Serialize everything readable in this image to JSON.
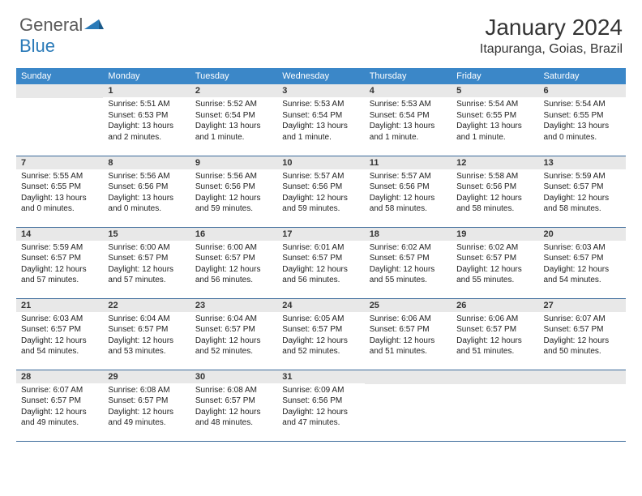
{
  "logo": {
    "text1": "General",
    "text2": "Blue"
  },
  "title": "January 2024",
  "location": "Itapuranga, Goias, Brazil",
  "day_headers": [
    "Sunday",
    "Monday",
    "Tuesday",
    "Wednesday",
    "Thursday",
    "Friday",
    "Saturday"
  ],
  "colors": {
    "header_bg": "#3b87c8",
    "header_fg": "#ffffff",
    "daynum_bg": "#e8e8e8",
    "border": "#3b6a9a",
    "logo_gray": "#5a5a5a",
    "logo_blue": "#2a7ab8"
  },
  "start_offset": 1,
  "days": [
    {
      "n": "1",
      "sr": "5:51 AM",
      "ss": "6:53 PM",
      "dl": "13 hours and 2 minutes."
    },
    {
      "n": "2",
      "sr": "5:52 AM",
      "ss": "6:54 PM",
      "dl": "13 hours and 1 minute."
    },
    {
      "n": "3",
      "sr": "5:53 AM",
      "ss": "6:54 PM",
      "dl": "13 hours and 1 minute."
    },
    {
      "n": "4",
      "sr": "5:53 AM",
      "ss": "6:54 PM",
      "dl": "13 hours and 1 minute."
    },
    {
      "n": "5",
      "sr": "5:54 AM",
      "ss": "6:55 PM",
      "dl": "13 hours and 1 minute."
    },
    {
      "n": "6",
      "sr": "5:54 AM",
      "ss": "6:55 PM",
      "dl": "13 hours and 0 minutes."
    },
    {
      "n": "7",
      "sr": "5:55 AM",
      "ss": "6:55 PM",
      "dl": "13 hours and 0 minutes."
    },
    {
      "n": "8",
      "sr": "5:56 AM",
      "ss": "6:56 PM",
      "dl": "13 hours and 0 minutes."
    },
    {
      "n": "9",
      "sr": "5:56 AM",
      "ss": "6:56 PM",
      "dl": "12 hours and 59 minutes."
    },
    {
      "n": "10",
      "sr": "5:57 AM",
      "ss": "6:56 PM",
      "dl": "12 hours and 59 minutes."
    },
    {
      "n": "11",
      "sr": "5:57 AM",
      "ss": "6:56 PM",
      "dl": "12 hours and 58 minutes."
    },
    {
      "n": "12",
      "sr": "5:58 AM",
      "ss": "6:56 PM",
      "dl": "12 hours and 58 minutes."
    },
    {
      "n": "13",
      "sr": "5:59 AM",
      "ss": "6:57 PM",
      "dl": "12 hours and 58 minutes."
    },
    {
      "n": "14",
      "sr": "5:59 AM",
      "ss": "6:57 PM",
      "dl": "12 hours and 57 minutes."
    },
    {
      "n": "15",
      "sr": "6:00 AM",
      "ss": "6:57 PM",
      "dl": "12 hours and 57 minutes."
    },
    {
      "n": "16",
      "sr": "6:00 AM",
      "ss": "6:57 PM",
      "dl": "12 hours and 56 minutes."
    },
    {
      "n": "17",
      "sr": "6:01 AM",
      "ss": "6:57 PM",
      "dl": "12 hours and 56 minutes."
    },
    {
      "n": "18",
      "sr": "6:02 AM",
      "ss": "6:57 PM",
      "dl": "12 hours and 55 minutes."
    },
    {
      "n": "19",
      "sr": "6:02 AM",
      "ss": "6:57 PM",
      "dl": "12 hours and 55 minutes."
    },
    {
      "n": "20",
      "sr": "6:03 AM",
      "ss": "6:57 PM",
      "dl": "12 hours and 54 minutes."
    },
    {
      "n": "21",
      "sr": "6:03 AM",
      "ss": "6:57 PM",
      "dl": "12 hours and 54 minutes."
    },
    {
      "n": "22",
      "sr": "6:04 AM",
      "ss": "6:57 PM",
      "dl": "12 hours and 53 minutes."
    },
    {
      "n": "23",
      "sr": "6:04 AM",
      "ss": "6:57 PM",
      "dl": "12 hours and 52 minutes."
    },
    {
      "n": "24",
      "sr": "6:05 AM",
      "ss": "6:57 PM",
      "dl": "12 hours and 52 minutes."
    },
    {
      "n": "25",
      "sr": "6:06 AM",
      "ss": "6:57 PM",
      "dl": "12 hours and 51 minutes."
    },
    {
      "n": "26",
      "sr": "6:06 AM",
      "ss": "6:57 PM",
      "dl": "12 hours and 51 minutes."
    },
    {
      "n": "27",
      "sr": "6:07 AM",
      "ss": "6:57 PM",
      "dl": "12 hours and 50 minutes."
    },
    {
      "n": "28",
      "sr": "6:07 AM",
      "ss": "6:57 PM",
      "dl": "12 hours and 49 minutes."
    },
    {
      "n": "29",
      "sr": "6:08 AM",
      "ss": "6:57 PM",
      "dl": "12 hours and 49 minutes."
    },
    {
      "n": "30",
      "sr": "6:08 AM",
      "ss": "6:57 PM",
      "dl": "12 hours and 48 minutes."
    },
    {
      "n": "31",
      "sr": "6:09 AM",
      "ss": "6:56 PM",
      "dl": "12 hours and 47 minutes."
    }
  ]
}
